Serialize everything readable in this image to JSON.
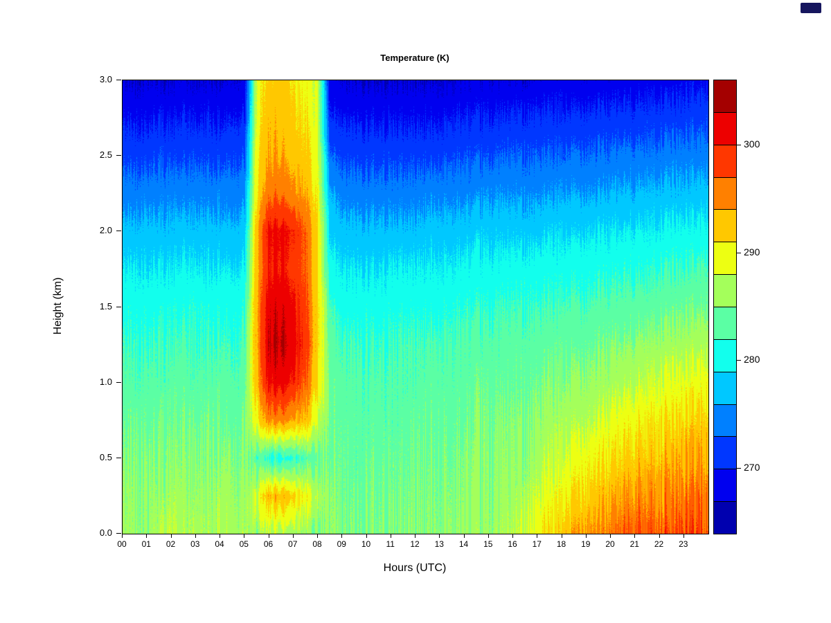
{
  "page": {
    "background": "#ffffff"
  },
  "decor": {
    "corner_icon_color": "#16165e"
  },
  "chart_data": {
    "type": "heatmap",
    "title": "Temperature (K)",
    "xlabel": "Hours (UTC)",
    "ylabel": "Height (km)",
    "x_tick_labels": [
      "00",
      "01",
      "02",
      "03",
      "04",
      "05",
      "06",
      "07",
      "08",
      "09",
      "10",
      "11",
      "12",
      "13",
      "14",
      "15",
      "16",
      "17",
      "18",
      "19",
      "20",
      "21",
      "22",
      "23"
    ],
    "y_tick_labels": [
      "0.0",
      "0.5",
      "1.0",
      "1.5",
      "2.0",
      "2.5",
      "3.0"
    ],
    "x_range_hours": [
      0,
      24
    ],
    "y_range_km": [
      0,
      3
    ],
    "legend_position": "right-colorbar",
    "grid_lines": false,
    "colorbar": {
      "min_K": 264,
      "max_K": 306,
      "n_blocks": 14,
      "tick_values": [
        270,
        280,
        290,
        300
      ],
      "palette": "jet",
      "palette_stops": [
        [
          0,
          0,
          0,
          143
        ],
        [
          0.125,
          0,
          0,
          255
        ],
        [
          0.375,
          0,
          255,
          255
        ],
        [
          0.625,
          255,
          255,
          0
        ],
        [
          0.875,
          255,
          0,
          0
        ],
        [
          1,
          128,
          0,
          0
        ]
      ]
    },
    "noise": {
      "column_streak_amp_K": 1.4,
      "pixel_amp_K": 0.5,
      "evening_surface_boost": 2.2
    },
    "grid": {
      "x_hours": [
        0,
        0.5,
        1,
        1.5,
        2,
        2.5,
        3,
        3.5,
        4,
        4.5,
        5,
        5.5,
        6,
        6.5,
        7,
        7.5,
        8,
        8.5,
        9,
        9.5,
        10,
        10.5,
        11,
        11.5,
        12,
        12.5,
        13,
        13.5,
        14,
        14.5,
        15,
        15.5,
        16,
        16.5,
        17,
        17.5,
        18,
        18.5,
        19,
        19.5,
        20,
        20.5,
        21,
        21.5,
        22,
        22.5,
        23,
        23.5
      ],
      "heights_km": [
        0,
        0.25,
        0.5,
        0.75,
        1,
        1.25,
        1.5,
        1.75,
        2,
        2.25,
        2.5,
        2.75,
        3
      ],
      "orientation": "temperature_K_columns[i] is the vertical profile at x_hours[i], ordered bottom (0 km) to top (3 km)",
      "temperature_K_columns": [
        [
          286,
          285.5,
          285,
          284,
          283,
          282,
          281,
          279,
          277,
          274.5,
          272,
          269.5,
          267
        ],
        [
          286.5,
          286,
          285,
          284.5,
          283,
          282,
          281,
          279.5,
          277,
          274.5,
          272,
          269.5,
          267
        ],
        [
          286,
          286,
          285.5,
          284,
          283.5,
          282,
          281,
          279,
          277.5,
          275,
          272,
          269.5,
          267.5
        ],
        [
          287,
          286,
          285,
          284.5,
          283,
          282.5,
          281,
          279.5,
          277,
          274.5,
          272.5,
          270,
          267
        ],
        [
          287.5,
          286.5,
          285.5,
          284,
          283.5,
          282,
          281,
          279,
          277,
          275,
          272,
          269.5,
          267
        ],
        [
          286.5,
          286,
          285,
          284.5,
          283.5,
          282.5,
          281,
          279.5,
          277.5,
          274.5,
          272,
          270,
          267.5
        ],
        [
          287,
          286,
          285.5,
          284,
          283,
          282,
          281.5,
          279.5,
          277,
          275,
          272.5,
          269.5,
          267
        ],
        [
          286.5,
          286,
          285,
          284.5,
          283.5,
          282,
          281,
          279,
          277.5,
          274.5,
          272,
          270,
          267.5
        ],
        [
          287,
          286.5,
          285.5,
          284.5,
          283.5,
          282.5,
          281,
          279.5,
          277,
          275,
          272,
          269.5,
          267
        ],
        [
          287,
          286,
          285.5,
          284,
          283,
          282,
          281,
          279,
          277,
          274.5,
          272.5,
          270,
          267.5
        ],
        [
          286.5,
          286,
          285,
          284.5,
          283.5,
          282.5,
          281.5,
          279.5,
          277.5,
          275,
          272.5,
          270,
          267.5
        ],
        [
          286,
          288,
          283,
          290,
          293,
          294,
          294,
          293,
          293,
          291,
          290,
          289,
          289
        ],
        [
          287,
          293,
          281,
          295,
          301,
          303,
          302,
          300,
          301,
          296,
          294,
          293,
          292
        ],
        [
          287,
          293.5,
          281,
          295.5,
          301.5,
          303.5,
          302.5,
          300.5,
          301,
          296.5,
          294,
          293,
          292.5
        ],
        [
          287,
          292,
          282,
          294,
          300,
          302,
          301,
          299,
          300,
          295,
          293,
          292,
          291
        ],
        [
          286,
          290,
          283,
          293,
          297,
          299,
          298,
          297,
          297,
          294,
          292,
          291,
          290
        ],
        [
          285,
          287,
          284,
          288,
          291,
          292,
          292,
          291,
          291,
          290,
          289,
          288,
          288
        ],
        [
          285,
          285,
          284,
          284,
          284,
          283,
          282,
          280,
          278,
          276,
          273,
          270,
          268
        ],
        [
          284.5,
          284,
          284,
          283.5,
          283,
          282,
          280.5,
          279,
          277,
          274.5,
          272,
          269.5,
          267
        ],
        [
          284.5,
          284,
          283.5,
          283.5,
          283,
          282,
          280.5,
          279,
          277,
          274.5,
          272,
          269.5,
          267
        ],
        [
          285,
          284.5,
          284,
          283.5,
          283,
          282,
          281,
          279,
          277,
          274.5,
          272,
          269.5,
          267
        ],
        [
          285,
          284.5,
          284,
          283.5,
          283,
          282,
          280.5,
          279,
          277,
          274.5,
          272,
          269.5,
          267
        ],
        [
          285,
          284.5,
          284,
          283.5,
          283,
          282,
          281,
          279.5,
          277,
          274.5,
          272,
          269.5,
          267
        ],
        [
          285,
          284.5,
          284,
          283.5,
          283,
          282.5,
          281,
          279.5,
          277,
          274.5,
          272,
          269.5,
          267
        ],
        [
          285.5,
          285,
          284.5,
          284,
          283,
          282.5,
          281,
          279.5,
          277,
          274.5,
          272,
          269.5,
          267
        ],
        [
          285.5,
          285,
          284.5,
          284,
          283.5,
          282.5,
          281,
          279.5,
          277.5,
          275,
          272,
          269.5,
          267
        ],
        [
          285.5,
          285,
          284.5,
          284,
          283.5,
          282.5,
          281,
          279.5,
          277.5,
          275,
          272,
          269.5,
          267
        ],
        [
          285.5,
          285,
          284.5,
          284,
          283.5,
          282.5,
          281.5,
          279.5,
          277.5,
          275,
          272.5,
          270,
          267
        ],
        [
          286,
          285.5,
          285,
          284,
          283.5,
          283,
          281.5,
          280,
          277.5,
          275,
          272.5,
          270,
          267.5
        ],
        [
          286,
          285.5,
          285,
          284.5,
          284,
          283,
          281.5,
          280,
          278,
          275,
          272.5,
          270,
          267.5
        ],
        [
          286,
          285.5,
          285,
          284.5,
          284,
          283,
          281.5,
          280,
          278,
          275.5,
          272.5,
          270,
          267.5
        ],
        [
          286.5,
          286,
          285.5,
          285,
          284,
          283,
          282,
          280,
          278,
          275.5,
          273,
          270,
          267.5
        ],
        [
          287,
          286,
          285.5,
          285,
          284,
          283.5,
          282,
          280.5,
          278,
          275.5,
          273,
          270.5,
          267.5
        ],
        [
          288.5,
          287,
          286,
          285,
          284,
          283.5,
          282,
          280.5,
          278,
          275.5,
          273,
          270.5,
          267.5
        ],
        [
          290,
          288,
          286.5,
          285.5,
          284.5,
          283.5,
          282,
          280.5,
          278,
          275.5,
          273,
          270.5,
          268
        ],
        [
          291,
          289,
          287.5,
          286,
          285,
          283.5,
          282,
          280.5,
          278.5,
          275.5,
          273,
          270.5,
          268
        ],
        [
          292.5,
          290,
          288,
          286.5,
          285,
          284,
          282.5,
          280.5,
          278.5,
          276,
          273,
          270.5,
          268
        ],
        [
          293.5,
          291,
          289,
          287,
          285.5,
          284,
          282.5,
          281,
          278.5,
          276,
          273.5,
          270.5,
          268
        ],
        [
          294.5,
          292,
          290,
          287.5,
          286,
          284.5,
          282.5,
          281,
          279,
          276,
          273.5,
          271,
          268
        ],
        [
          295,
          292.5,
          290.5,
          288,
          286,
          284.5,
          283,
          281,
          279,
          276,
          273.5,
          271,
          268
        ],
        [
          296,
          293.5,
          291,
          289,
          286.5,
          285,
          283,
          281,
          279,
          276.5,
          273.5,
          271,
          268
        ],
        [
          296.5,
          294,
          291.5,
          289.5,
          287,
          285,
          283,
          281.5,
          279,
          276.5,
          274,
          271,
          268.5
        ],
        [
          297,
          294.5,
          292,
          290,
          287.5,
          285.5,
          283.5,
          281.5,
          279.5,
          276.5,
          274,
          271,
          268.5
        ],
        [
          297,
          295,
          292.5,
          290.5,
          288,
          286,
          283.5,
          281.5,
          279.5,
          277,
          274,
          271.5,
          268.5
        ],
        [
          297.5,
          295,
          293,
          291,
          288.5,
          286,
          284,
          282,
          279.5,
          277,
          274,
          271.5,
          268.5
        ],
        [
          297.5,
          295.5,
          293.5,
          291,
          289,
          286.5,
          284,
          282,
          280,
          277,
          274.5,
          271.5,
          268.5
        ],
        [
          298,
          295.5,
          293.5,
          291.5,
          289,
          286.5,
          284.5,
          282,
          280,
          277,
          274.5,
          271.5,
          269
        ],
        [
          298,
          296,
          294,
          292,
          289.5,
          287,
          284.5,
          282.5,
          280,
          277.5,
          274.5,
          272,
          269
        ]
      ]
    }
  }
}
